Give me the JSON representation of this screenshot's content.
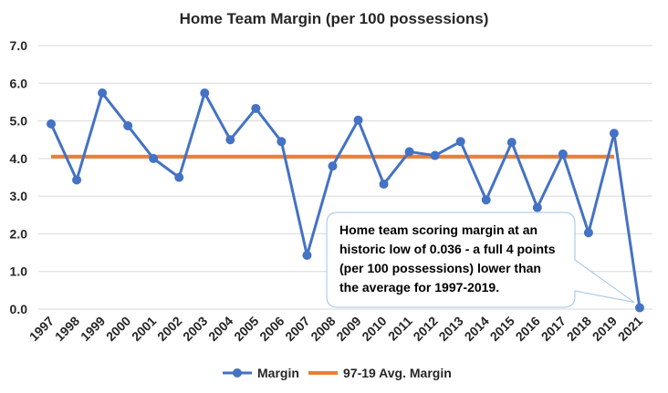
{
  "chart_data": {
    "type": "line",
    "title": "Home Team Margin (per 100 possessions)",
    "xlabel": "",
    "ylabel": "",
    "categories": [
      "1997",
      "1998",
      "1999",
      "2000",
      "2001",
      "2002",
      "2003",
      "2004",
      "2005",
      "2006",
      "2007",
      "2008",
      "2009",
      "2010",
      "2011",
      "2012",
      "2013",
      "2014",
      "2015",
      "2016",
      "2017",
      "2018",
      "2019",
      "2021"
    ],
    "y_ticks": [
      "0.0",
      "1.0",
      "2.0",
      "3.0",
      "4.0",
      "5.0",
      "6.0",
      "7.0"
    ],
    "ylim": [
      0,
      7
    ],
    "grid": true,
    "legend_position": "bottom",
    "series": [
      {
        "name": "Margin",
        "color": "#4472C4",
        "marker": "circle",
        "values": [
          4.92,
          3.43,
          5.74,
          4.87,
          4.0,
          3.5,
          5.74,
          4.5,
          5.33,
          4.45,
          1.43,
          3.8,
          5.02,
          3.32,
          4.18,
          4.08,
          4.45,
          2.9,
          4.43,
          2.7,
          4.12,
          2.03,
          4.67,
          0.036
        ]
      },
      {
        "name": "97-19 Avg. Margin",
        "color": "#ED7D31",
        "marker": "none",
        "values": [
          4.05,
          4.05,
          4.05,
          4.05,
          4.05,
          4.05,
          4.05,
          4.05,
          4.05,
          4.05,
          4.05,
          4.05,
          4.05,
          4.05,
          4.05,
          4.05,
          4.05,
          4.05,
          4.05,
          4.05,
          4.05,
          4.05,
          4.05,
          null
        ]
      }
    ],
    "annotation": {
      "lines": [
        "Home team scoring margin at an",
        "historic low of 0.036 - a full 4 points",
        "(per 100 possessions) lower than",
        "the average for 1997-2019."
      ],
      "points_to": "2021"
    }
  }
}
